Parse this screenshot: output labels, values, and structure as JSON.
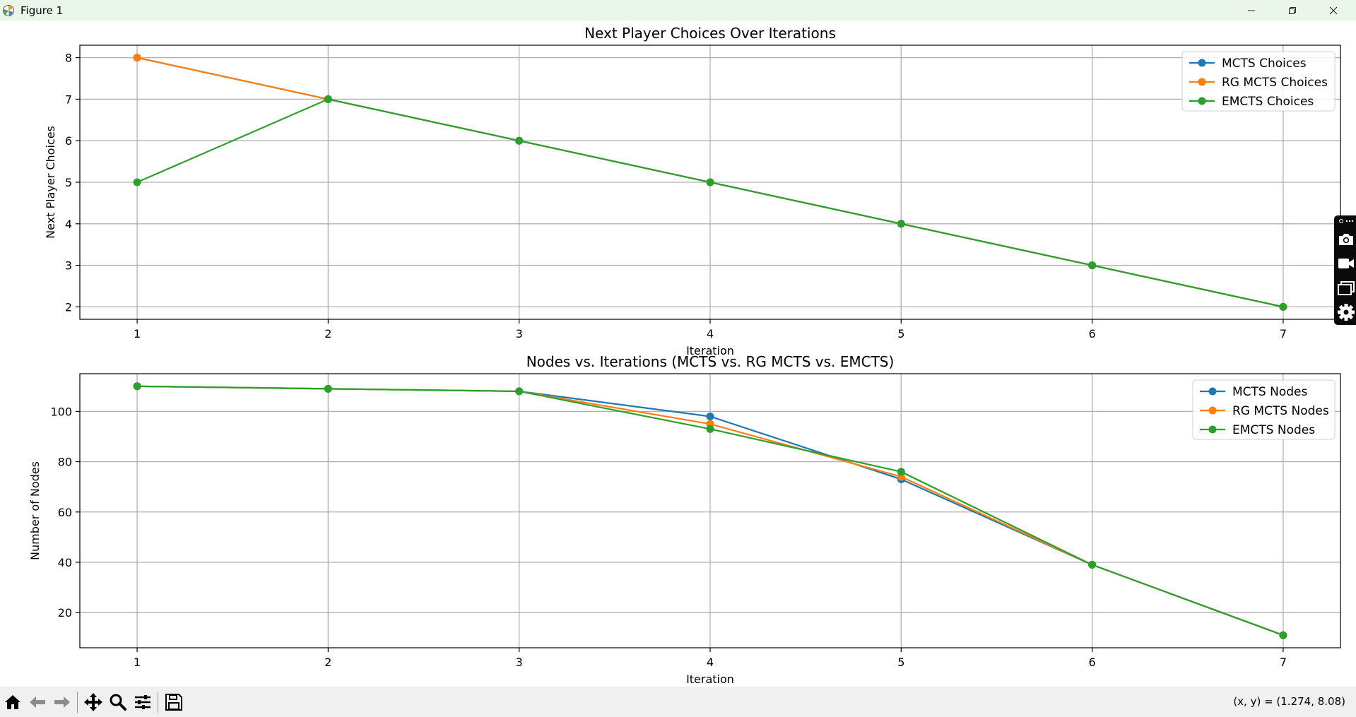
{
  "window": {
    "title": "Figure 1",
    "icon": "matplotlib-logo-icon",
    "controls": [
      "minimize-icon",
      "maximize-icon",
      "close-icon"
    ]
  },
  "toolbar": {
    "buttons": [
      "home-icon",
      "back-arrow-icon",
      "forward-arrow-icon",
      "pan-icon",
      "zoom-icon",
      "subplots-config-icon",
      "save-icon"
    ],
    "coords": "(x, y) = (1.274, 8.08)"
  },
  "side_widget": {
    "buttons": [
      "more-icon",
      "camera-icon",
      "video-icon",
      "window-icon",
      "gear-icon"
    ]
  },
  "colors": {
    "mcts": "#1f77b4",
    "rg_mcts": "#ff7f0e",
    "emcts": "#2ca02c",
    "grid": "#b0b0b0",
    "titlebar": "#eaf6ea",
    "toolbar": "#f0f0f0"
  },
  "chart_data": [
    {
      "type": "line",
      "title": "Next Player Choices Over Iterations",
      "xlabel": "Iteration",
      "ylabel": "Next Player Choices",
      "x": [
        1,
        2,
        3,
        4,
        5,
        6,
        7
      ],
      "xticks": [
        1,
        2,
        3,
        4,
        5,
        6,
        7
      ],
      "yticks": [
        2,
        3,
        4,
        5,
        6,
        7,
        8
      ],
      "xlim": [
        0.7,
        7.3
      ],
      "ylim": [
        1.7,
        8.3
      ],
      "grid": true,
      "legend_position": "top-right",
      "series": [
        {
          "name": "MCTS Choices",
          "color": "#1f77b4",
          "values": [
            8,
            7,
            6,
            5,
            4,
            3,
            2
          ]
        },
        {
          "name": "RG MCTS Choices",
          "color": "#ff7f0e",
          "values": [
            8,
            7,
            6,
            5,
            4,
            3,
            2
          ]
        },
        {
          "name": "EMCTS Choices",
          "color": "#2ca02c",
          "values": [
            5,
            7,
            6,
            5,
            4,
            3,
            2
          ]
        }
      ]
    },
    {
      "type": "line",
      "title": "Nodes vs. Iterations (MCTS vs. RG MCTS vs. EMCTS)",
      "xlabel": "Iteration",
      "ylabel": "Number of Nodes",
      "x": [
        1,
        2,
        3,
        4,
        5,
        6,
        7
      ],
      "xticks": [
        1,
        2,
        3,
        4,
        5,
        6,
        7
      ],
      "yticks": [
        20,
        40,
        60,
        80,
        100
      ],
      "xlim": [
        0.7,
        7.3
      ],
      "ylim": [
        6,
        115
      ],
      "grid": true,
      "legend_position": "top-right",
      "series": [
        {
          "name": "MCTS Nodes",
          "color": "#1f77b4",
          "values": [
            110,
            109,
            108,
            98,
            73,
            39,
            11
          ]
        },
        {
          "name": "RG MCTS Nodes",
          "color": "#ff7f0e",
          "values": [
            110,
            109,
            108,
            95,
            74,
            39,
            11
          ]
        },
        {
          "name": "EMCTS Nodes",
          "color": "#2ca02c",
          "values": [
            110,
            109,
            108,
            93,
            76,
            39,
            11
          ]
        }
      ]
    }
  ]
}
